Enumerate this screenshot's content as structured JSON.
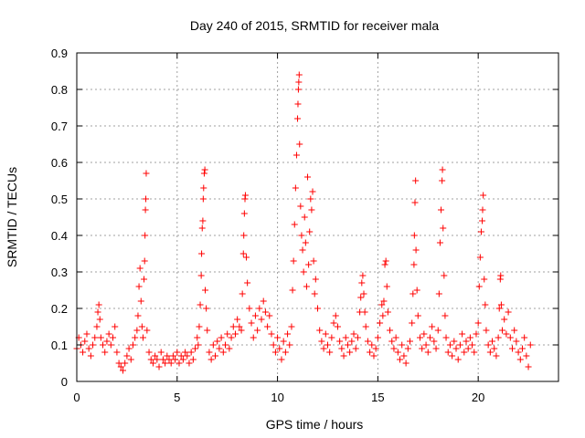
{
  "chart_data": {
    "type": "scatter",
    "title": "Day 240 of 2015, SRMTID for receiver mala",
    "xlabel": "GPS time / hours",
    "ylabel": "SRMTID / TECUs",
    "xlim": [
      0,
      24
    ],
    "ylim": [
      0,
      0.9
    ],
    "xticks": [
      0,
      5,
      10,
      15,
      20
    ],
    "xtick_labels": [
      "0",
      "5",
      "10",
      "15",
      "20"
    ],
    "yticks": [
      0,
      0.1,
      0.2,
      0.3,
      0.4,
      0.5,
      0.6,
      0.7,
      0.8,
      0.9
    ],
    "ytick_labels": [
      "0",
      "0.1",
      "0.2",
      "0.3",
      "0.4",
      "0.5",
      "0.6",
      "0.7",
      "0.8",
      "0.9"
    ],
    "grid": true,
    "marker": "+",
    "series": [
      {
        "name": "mala",
        "color": "#ff0000",
        "points": [
          [
            0.0,
            0.09
          ],
          [
            0.1,
            0.12
          ],
          [
            0.2,
            0.1
          ],
          [
            0.3,
            0.08
          ],
          [
            0.4,
            0.11
          ],
          [
            0.5,
            0.13
          ],
          [
            0.6,
            0.09
          ],
          [
            0.7,
            0.07
          ],
          [
            0.8,
            0.1
          ],
          [
            0.9,
            0.12
          ],
          [
            1.0,
            0.15
          ],
          [
            1.05,
            0.19
          ],
          [
            1.1,
            0.21
          ],
          [
            1.15,
            0.17
          ],
          [
            1.2,
            0.12
          ],
          [
            1.3,
            0.1
          ],
          [
            1.4,
            0.08
          ],
          [
            1.5,
            0.11
          ],
          [
            1.6,
            0.13
          ],
          [
            1.7,
            0.1
          ],
          [
            1.8,
            0.12
          ],
          [
            1.9,
            0.15
          ],
          [
            2.0,
            0.08
          ],
          [
            2.1,
            0.05
          ],
          [
            2.2,
            0.04
          ],
          [
            2.3,
            0.03
          ],
          [
            2.4,
            0.05
          ],
          [
            2.5,
            0.07
          ],
          [
            2.6,
            0.09
          ],
          [
            2.7,
            0.06
          ],
          [
            2.8,
            0.1
          ],
          [
            2.9,
            0.12
          ],
          [
            3.0,
            0.14
          ],
          [
            3.05,
            0.18
          ],
          [
            3.1,
            0.26
          ],
          [
            3.15,
            0.31
          ],
          [
            3.2,
            0.22
          ],
          [
            3.25,
            0.15
          ],
          [
            3.3,
            0.12
          ],
          [
            3.35,
            0.28
          ],
          [
            3.38,
            0.33
          ],
          [
            3.4,
            0.4
          ],
          [
            3.42,
            0.47
          ],
          [
            3.44,
            0.5
          ],
          [
            3.46,
            0.57
          ],
          [
            3.5,
            0.14
          ],
          [
            3.6,
            0.08
          ],
          [
            3.7,
            0.06
          ],
          [
            3.8,
            0.05
          ],
          [
            3.9,
            0.07
          ],
          [
            4.0,
            0.06
          ],
          [
            4.1,
            0.04
          ],
          [
            4.2,
            0.08
          ],
          [
            4.3,
            0.06
          ],
          [
            4.4,
            0.05
          ],
          [
            4.5,
            0.07
          ],
          [
            4.6,
            0.06
          ],
          [
            4.7,
            0.05
          ],
          [
            4.8,
            0.07
          ],
          [
            4.9,
            0.06
          ],
          [
            5.0,
            0.08
          ],
          [
            5.1,
            0.05
          ],
          [
            5.2,
            0.07
          ],
          [
            5.3,
            0.06
          ],
          [
            5.4,
            0.08
          ],
          [
            5.5,
            0.07
          ],
          [
            5.6,
            0.05
          ],
          [
            5.7,
            0.08
          ],
          [
            5.8,
            0.06
          ],
          [
            5.9,
            0.09
          ],
          [
            6.0,
            0.12
          ],
          [
            6.05,
            0.1
          ],
          [
            6.1,
            0.15
          ],
          [
            6.15,
            0.21
          ],
          [
            6.2,
            0.29
          ],
          [
            6.22,
            0.35
          ],
          [
            6.25,
            0.42
          ],
          [
            6.28,
            0.44
          ],
          [
            6.3,
            0.5
          ],
          [
            6.32,
            0.53
          ],
          [
            6.35,
            0.57
          ],
          [
            6.38,
            0.58
          ],
          [
            6.4,
            0.25
          ],
          [
            6.45,
            0.2
          ],
          [
            6.5,
            0.14
          ],
          [
            6.6,
            0.08
          ],
          [
            6.7,
            0.06
          ],
          [
            6.8,
            0.1
          ],
          [
            6.9,
            0.07
          ],
          [
            7.0,
            0.11
          ],
          [
            7.1,
            0.09
          ],
          [
            7.2,
            0.12
          ],
          [
            7.3,
            0.08
          ],
          [
            7.4,
            0.1
          ],
          [
            7.5,
            0.13
          ],
          [
            7.6,
            0.09
          ],
          [
            7.7,
            0.12
          ],
          [
            7.8,
            0.15
          ],
          [
            7.9,
            0.13
          ],
          [
            8.0,
            0.17
          ],
          [
            8.1,
            0.15
          ],
          [
            8.2,
            0.14
          ],
          [
            8.25,
            0.24
          ],
          [
            8.3,
            0.35
          ],
          [
            8.32,
            0.4
          ],
          [
            8.35,
            0.46
          ],
          [
            8.38,
            0.5
          ],
          [
            8.4,
            0.51
          ],
          [
            8.45,
            0.34
          ],
          [
            8.5,
            0.27
          ],
          [
            8.6,
            0.2
          ],
          [
            8.7,
            0.16
          ],
          [
            8.8,
            0.12
          ],
          [
            8.9,
            0.18
          ],
          [
            9.0,
            0.14
          ],
          [
            9.1,
            0.2
          ],
          [
            9.2,
            0.17
          ],
          [
            9.3,
            0.22
          ],
          [
            9.4,
            0.19
          ],
          [
            9.5,
            0.15
          ],
          [
            9.6,
            0.18
          ],
          [
            9.7,
            0.13
          ],
          [
            9.8,
            0.1
          ],
          [
            9.9,
            0.08
          ],
          [
            10.0,
            0.12
          ],
          [
            10.1,
            0.09
          ],
          [
            10.2,
            0.06
          ],
          [
            10.3,
            0.11
          ],
          [
            10.4,
            0.08
          ],
          [
            10.5,
            0.13
          ],
          [
            10.6,
            0.1
          ],
          [
            10.7,
            0.15
          ],
          [
            10.75,
            0.25
          ],
          [
            10.8,
            0.33
          ],
          [
            10.85,
            0.43
          ],
          [
            10.9,
            0.53
          ],
          [
            10.95,
            0.62
          ],
          [
            11.0,
            0.72
          ],
          [
            11.02,
            0.76
          ],
          [
            11.04,
            0.8
          ],
          [
            11.06,
            0.82
          ],
          [
            11.08,
            0.84
          ],
          [
            11.1,
            0.65
          ],
          [
            11.15,
            0.48
          ],
          [
            11.2,
            0.4
          ],
          [
            11.25,
            0.36
          ],
          [
            11.3,
            0.3
          ],
          [
            11.35,
            0.45
          ],
          [
            11.4,
            0.38
          ],
          [
            11.45,
            0.26
          ],
          [
            11.5,
            0.56
          ],
          [
            11.55,
            0.32
          ],
          [
            11.6,
            0.41
          ],
          [
            11.65,
            0.5
          ],
          [
            11.7,
            0.47
          ],
          [
            11.75,
            0.52
          ],
          [
            11.8,
            0.33
          ],
          [
            11.85,
            0.24
          ],
          [
            11.9,
            0.28
          ],
          [
            12.0,
            0.2
          ],
          [
            12.1,
            0.14
          ],
          [
            12.2,
            0.11
          ],
          [
            12.3,
            0.09
          ],
          [
            12.4,
            0.13
          ],
          [
            12.5,
            0.1
          ],
          [
            12.6,
            0.08
          ],
          [
            12.7,
            0.12
          ],
          [
            12.8,
            0.16
          ],
          [
            12.9,
            0.18
          ],
          [
            13.0,
            0.15
          ],
          [
            13.1,
            0.11
          ],
          [
            13.2,
            0.09
          ],
          [
            13.3,
            0.07
          ],
          [
            13.4,
            0.12
          ],
          [
            13.5,
            0.1
          ],
          [
            13.6,
            0.08
          ],
          [
            13.7,
            0.11
          ],
          [
            13.8,
            0.13
          ],
          [
            13.9,
            0.09
          ],
          [
            14.0,
            0.12
          ],
          [
            14.1,
            0.19
          ],
          [
            14.15,
            0.23
          ],
          [
            14.2,
            0.27
          ],
          [
            14.25,
            0.29
          ],
          [
            14.3,
            0.24
          ],
          [
            14.35,
            0.19
          ],
          [
            14.4,
            0.15
          ],
          [
            14.5,
            0.11
          ],
          [
            14.6,
            0.08
          ],
          [
            14.7,
            0.1
          ],
          [
            14.8,
            0.07
          ],
          [
            14.9,
            0.09
          ],
          [
            15.0,
            0.12
          ],
          [
            15.1,
            0.16
          ],
          [
            15.2,
            0.21
          ],
          [
            15.25,
            0.18
          ],
          [
            15.3,
            0.22
          ],
          [
            15.35,
            0.32
          ],
          [
            15.4,
            0.33
          ],
          [
            15.45,
            0.26
          ],
          [
            15.5,
            0.19
          ],
          [
            15.6,
            0.14
          ],
          [
            15.7,
            0.11
          ],
          [
            15.8,
            0.09
          ],
          [
            15.9,
            0.12
          ],
          [
            16.0,
            0.08
          ],
          [
            16.1,
            0.06
          ],
          [
            16.2,
            0.1
          ],
          [
            16.3,
            0.07
          ],
          [
            16.4,
            0.05
          ],
          [
            16.5,
            0.09
          ],
          [
            16.6,
            0.11
          ],
          [
            16.7,
            0.16
          ],
          [
            16.75,
            0.24
          ],
          [
            16.8,
            0.32
          ],
          [
            16.82,
            0.4
          ],
          [
            16.85,
            0.49
          ],
          [
            16.88,
            0.55
          ],
          [
            16.9,
            0.36
          ],
          [
            16.95,
            0.25
          ],
          [
            17.0,
            0.18
          ],
          [
            17.1,
            0.12
          ],
          [
            17.2,
            0.09
          ],
          [
            17.3,
            0.13
          ],
          [
            17.4,
            0.1
          ],
          [
            17.5,
            0.08
          ],
          [
            17.6,
            0.12
          ],
          [
            17.7,
            0.15
          ],
          [
            17.8,
            0.11
          ],
          [
            17.9,
            0.09
          ],
          [
            18.0,
            0.14
          ],
          [
            18.05,
            0.24
          ],
          [
            18.1,
            0.38
          ],
          [
            18.15,
            0.47
          ],
          [
            18.2,
            0.55
          ],
          [
            18.22,
            0.58
          ],
          [
            18.25,
            0.42
          ],
          [
            18.3,
            0.29
          ],
          [
            18.35,
            0.18
          ],
          [
            18.4,
            0.12
          ],
          [
            18.5,
            0.08
          ],
          [
            18.6,
            0.1
          ],
          [
            18.7,
            0.07
          ],
          [
            18.8,
            0.11
          ],
          [
            18.9,
            0.09
          ],
          [
            19.0,
            0.06
          ],
          [
            19.1,
            0.1
          ],
          [
            19.2,
            0.13
          ],
          [
            19.3,
            0.08
          ],
          [
            19.4,
            0.11
          ],
          [
            19.5,
            0.09
          ],
          [
            19.6,
            0.12
          ],
          [
            19.7,
            0.1
          ],
          [
            19.8,
            0.08
          ],
          [
            19.9,
            0.13
          ],
          [
            20.0,
            0.16
          ],
          [
            20.05,
            0.26
          ],
          [
            20.1,
            0.34
          ],
          [
            20.15,
            0.41
          ],
          [
            20.2,
            0.44
          ],
          [
            20.22,
            0.47
          ],
          [
            20.25,
            0.51
          ],
          [
            20.3,
            0.28
          ],
          [
            20.35,
            0.21
          ],
          [
            20.4,
            0.14
          ],
          [
            20.5,
            0.1
          ],
          [
            20.6,
            0.08
          ],
          [
            20.7,
            0.11
          ],
          [
            20.8,
            0.09
          ],
          [
            20.9,
            0.07
          ],
          [
            21.0,
            0.12
          ],
          [
            21.05,
            0.2
          ],
          [
            21.1,
            0.28
          ],
          [
            21.12,
            0.29
          ],
          [
            21.15,
            0.21
          ],
          [
            21.2,
            0.14
          ],
          [
            21.3,
            0.17
          ],
          [
            21.4,
            0.13
          ],
          [
            21.5,
            0.19
          ],
          [
            21.6,
            0.12
          ],
          [
            21.7,
            0.09
          ],
          [
            21.8,
            0.14
          ],
          [
            21.9,
            0.11
          ],
          [
            22.0,
            0.08
          ],
          [
            22.1,
            0.06
          ],
          [
            22.2,
            0.09
          ],
          [
            22.3,
            0.12
          ],
          [
            22.4,
            0.07
          ],
          [
            22.5,
            0.04
          ],
          [
            22.6,
            0.1
          ]
        ]
      }
    ]
  }
}
